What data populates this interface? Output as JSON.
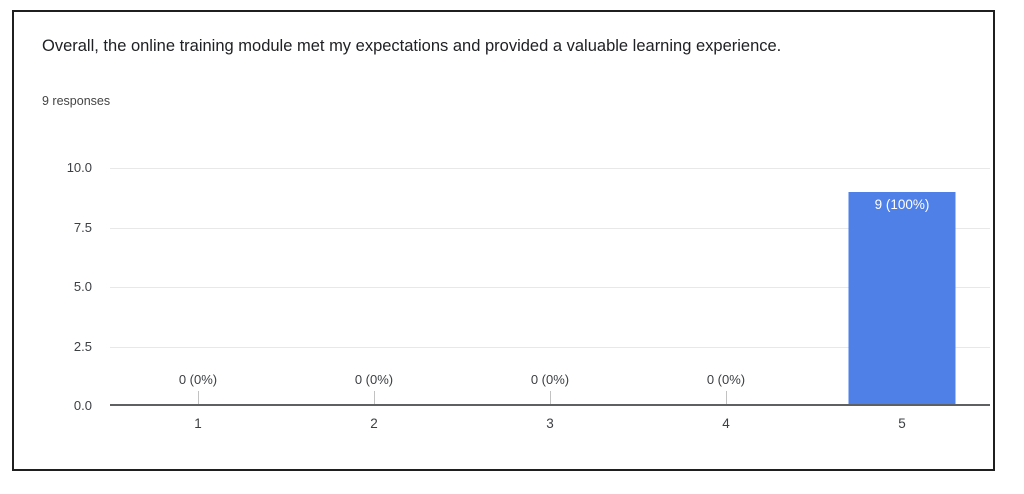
{
  "card": {
    "title": "Overall, the online training module met my expectations and provided a valuable learning experience.",
    "responses_label": "9 responses"
  },
  "chart_data": {
    "type": "bar",
    "title": "Overall, the online training module met my expectations and provided a valuable learning experience.",
    "subtitle": "9 responses",
    "categories": [
      "1",
      "2",
      "3",
      "4",
      "5"
    ],
    "values": [
      0,
      0,
      0,
      0,
      9
    ],
    "value_labels": [
      "0 (0%)",
      "0 (0%)",
      "0 (0%)",
      "0 (0%)",
      "9 (100%)"
    ],
    "total_responses": 9,
    "xlabel": "",
    "ylabel": "",
    "ylim": [
      0,
      10
    ],
    "yticks": [
      0,
      2.5,
      5,
      7.5,
      10
    ],
    "ytick_labels": [
      "0.0",
      "2.5",
      "5.0",
      "7.5",
      "10.0"
    ],
    "grid": true,
    "legend_position": "none",
    "bar_color": "#4e80e8",
    "bar_label_color": "#ffffff",
    "gridline_color": "#e8e8e8",
    "baseline_color": "#5f6061",
    "axis_text_color": "#3c4043"
  }
}
